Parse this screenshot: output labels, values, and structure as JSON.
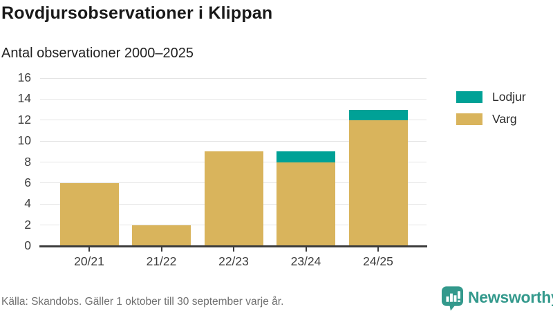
{
  "header": {
    "title": "Rovdjursobservationer i Klippan",
    "subtitle": "Antal observationer 2000–2025"
  },
  "chart_data": {
    "type": "bar",
    "stacked": true,
    "title": "Rovdjursobservationer i Klippan",
    "subtitle": "Antal observationer 2000–2025",
    "categories": [
      "20/21",
      "21/22",
      "22/23",
      "23/24",
      "24/25"
    ],
    "series": [
      {
        "name": "Lodjur",
        "color": "#00A196",
        "values": [
          0,
          0,
          0,
          1,
          1
        ]
      },
      {
        "name": "Varg",
        "color": "#D9B45C",
        "values": [
          6,
          2,
          9,
          8,
          12
        ]
      }
    ],
    "totals": [
      6,
      2,
      9,
      9,
      13
    ],
    "ylim": [
      0,
      16
    ],
    "yticks": [
      0,
      2,
      4,
      6,
      8,
      10,
      12,
      14,
      16
    ],
    "xlabel": "",
    "ylabel": "",
    "grid": "horizontal",
    "legend_position": "right"
  },
  "footer": {
    "source": "Källa: Skandobs. Gäller 1 oktober till 30 september varje år."
  },
  "logo": {
    "text": "Newsworthy",
    "color": "#33998C",
    "icon": "speech-bubble-bar-chart-icon"
  },
  "colors": {
    "lodjur": "#00A196",
    "varg": "#D9B45C",
    "gridline": "#E4E4E4",
    "axis_line": "#3C3C3C",
    "axis_text": "#3C3C3C",
    "title_text": "#191919",
    "muted_text": "#6F6F6F"
  }
}
